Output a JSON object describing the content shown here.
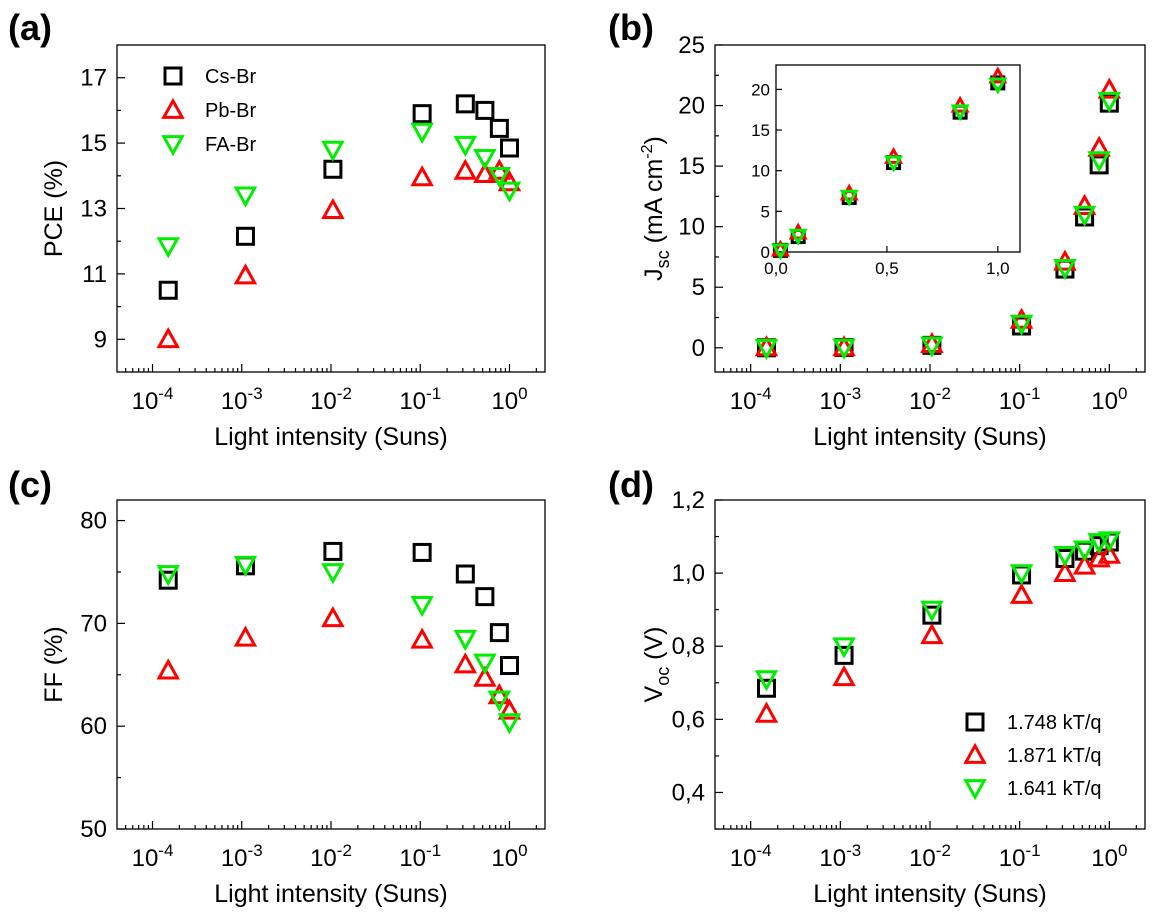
{
  "chart_data": [
    {
      "panel": "(a)",
      "type": "scatter",
      "xscale": "log",
      "xlabel": "Light intensity (Suns)",
      "ylabel": "PCE (%)",
      "xlim": [
        4e-05,
        2.5
      ],
      "ylim": [
        8,
        18
      ],
      "yticks": [
        9,
        11,
        13,
        15,
        17
      ],
      "xticks": [
        0.0001,
        0.001,
        0.01,
        0.1,
        1
      ],
      "legend": "top-left",
      "series": [
        {
          "name": "Cs-Br",
          "marker": "square",
          "color": "#000000",
          "x": [
            0.00015,
            0.0011,
            0.0105,
            0.105,
            0.32,
            0.53,
            0.77,
            1.0
          ],
          "y": [
            10.5,
            12.15,
            14.2,
            15.9,
            16.2,
            16.0,
            15.45,
            14.85
          ]
        },
        {
          "name": "Pb-Br",
          "marker": "triangle-up",
          "color": "#ff0000",
          "x": [
            0.00015,
            0.0011,
            0.0105,
            0.105,
            0.32,
            0.53,
            0.77,
            1.0
          ],
          "y": [
            9.0,
            10.95,
            12.95,
            13.95,
            14.15,
            14.05,
            14.15,
            13.8
          ]
        },
        {
          "name": "FA-Br",
          "marker": "triangle-down",
          "color": "#00ee00",
          "x": [
            0.00015,
            0.0011,
            0.0105,
            0.105,
            0.32,
            0.53,
            0.77,
            1.0
          ],
          "y": [
            11.85,
            13.4,
            14.8,
            15.35,
            14.95,
            14.55,
            14.0,
            13.55
          ]
        }
      ]
    },
    {
      "panel": "(b)",
      "type": "scatter",
      "xscale": "log",
      "xlabel": "Light intensity (Suns)",
      "ylabel": "J_sc (mA cm^-2)",
      "xlim": [
        4e-05,
        2.5
      ],
      "ylim": [
        -2,
        25
      ],
      "yticks": [
        0,
        5,
        10,
        15,
        20,
        25
      ],
      "xticks": [
        0.0001,
        0.001,
        0.01,
        0.1,
        1
      ],
      "series": [
        {
          "name": "Cs-Br",
          "marker": "square",
          "color": "#000000",
          "x": [
            0.00015,
            0.0011,
            0.0105,
            0.105,
            0.32,
            0.53,
            0.77,
            1.0
          ],
          "y": [
            0.0,
            0.02,
            0.2,
            1.8,
            6.5,
            10.8,
            15.1,
            20.2
          ]
        },
        {
          "name": "Pb-Br",
          "marker": "triangle-up",
          "color": "#ff0000",
          "x": [
            0.00015,
            0.0011,
            0.0105,
            0.105,
            0.32,
            0.53,
            0.77,
            1.0
          ],
          "y": [
            0.03,
            0.03,
            0.3,
            2.3,
            7.1,
            11.7,
            16.5,
            21.3
          ]
        },
        {
          "name": "FA-Br",
          "marker": "triangle-down",
          "color": "#00ee00",
          "x": [
            0.00015,
            0.0011,
            0.0105,
            0.105,
            0.32,
            0.53,
            0.77,
            1.0
          ],
          "y": [
            0.0,
            0.02,
            0.2,
            2.0,
            6.6,
            11.0,
            15.5,
            20.4
          ]
        }
      ],
      "inset": {
        "xscale": "linear",
        "xlim": [
          0,
          1.1
        ],
        "ylim": [
          0,
          23
        ],
        "xticks": [
          0.0,
          0.5,
          1.0
        ],
        "xticklabels": [
          "0,0",
          "0,5",
          "1,0"
        ],
        "yticks": [
          0,
          5,
          10,
          15,
          20
        ],
        "series": [
          {
            "name": "Cs-Br",
            "marker": "square",
            "color": "#000000",
            "x": [
              0.02,
              0.1,
              0.33,
              0.53,
              0.83,
              1.0
            ],
            "y": [
              0.2,
              1.9,
              6.7,
              11.0,
              17.2,
              20.8
            ]
          },
          {
            "name": "Pb-Br",
            "marker": "triangle-up",
            "color": "#ff0000",
            "x": [
              0.02,
              0.1,
              0.33,
              0.53,
              0.83,
              1.0
            ],
            "y": [
              0.3,
              2.4,
              7.2,
              11.7,
              18.0,
              21.6
            ]
          },
          {
            "name": "FA-Br",
            "marker": "triangle-down",
            "color": "#00ee00",
            "x": [
              0.02,
              0.1,
              0.33,
              0.53,
              0.83,
              1.0
            ],
            "y": [
              0.2,
              2.0,
              6.8,
              11.0,
              17.3,
              20.6
            ]
          }
        ]
      }
    },
    {
      "panel": "(c)",
      "type": "scatter",
      "xscale": "log",
      "xlabel": "Light intensity (Suns)",
      "ylabel": "FF (%)",
      "xlim": [
        4e-05,
        2.5
      ],
      "ylim": [
        50,
        82
      ],
      "yticks": [
        50,
        60,
        70,
        80
      ],
      "xticks": [
        0.0001,
        0.001,
        0.01,
        0.1,
        1
      ],
      "series": [
        {
          "name": "Cs-Br",
          "marker": "square",
          "color": "#000000",
          "x": [
            0.00015,
            0.0011,
            0.0105,
            0.105,
            0.32,
            0.53,
            0.77,
            1.0
          ],
          "y": [
            74.2,
            75.6,
            77.0,
            76.9,
            74.8,
            72.6,
            69.1,
            65.9
          ]
        },
        {
          "name": "Pb-Br",
          "marker": "triangle-up",
          "color": "#ff0000",
          "x": [
            0.00015,
            0.0011,
            0.0105,
            0.105,
            0.32,
            0.53,
            0.77,
            1.0
          ],
          "y": [
            65.4,
            68.6,
            70.5,
            68.4,
            66.0,
            64.7,
            63.0,
            61.5
          ]
        },
        {
          "name": "FA-Br",
          "marker": "triangle-down",
          "color": "#00ee00",
          "x": [
            0.00015,
            0.0011,
            0.0105,
            0.105,
            0.32,
            0.53,
            0.77,
            1.0
          ],
          "y": [
            74.8,
            75.7,
            75.0,
            71.8,
            68.5,
            66.2,
            62.6,
            60.4
          ]
        }
      ]
    },
    {
      "panel": "(d)",
      "type": "scatter",
      "xscale": "log",
      "xlabel": "Light intensity (Suns)",
      "ylabel": "V_oc (V)",
      "xlim": [
        4e-05,
        2.5
      ],
      "ylim": [
        0.3,
        1.2
      ],
      "yticks": [
        0.4,
        0.6,
        0.8,
        1.0,
        1.2
      ],
      "yticklabels": [
        "0,4",
        "0,6",
        "0,8",
        "1,0",
        "1,2"
      ],
      "xticks": [
        0.0001,
        0.001,
        0.01,
        0.1,
        1
      ],
      "legend": "bottom-right",
      "series": [
        {
          "name": "1.748 kT/q",
          "marker": "square",
          "color": "#000000",
          "x": [
            0.00015,
            0.0011,
            0.0105,
            0.105,
            0.32,
            0.53,
            0.77,
            1.0
          ],
          "y": [
            0.685,
            0.775,
            0.885,
            0.995,
            1.04,
            1.06,
            1.075,
            1.085
          ]
        },
        {
          "name": "1.871 kT/q",
          "marker": "triangle-up",
          "color": "#ff0000",
          "x": [
            0.00015,
            0.0011,
            0.0105,
            0.105,
            0.32,
            0.53,
            0.77,
            1.0
          ],
          "y": [
            0.615,
            0.715,
            0.83,
            0.94,
            1.0,
            1.02,
            1.04,
            1.05
          ]
        },
        {
          "name": "1.641 kT/q",
          "marker": "triangle-down",
          "color": "#00ee00",
          "x": [
            0.00015,
            0.0011,
            0.0105,
            0.105,
            0.32,
            0.53,
            0.77,
            1.0
          ],
          "y": [
            0.71,
            0.8,
            0.9,
            1.0,
            1.05,
            1.065,
            1.085,
            1.09
          ]
        }
      ]
    }
  ]
}
